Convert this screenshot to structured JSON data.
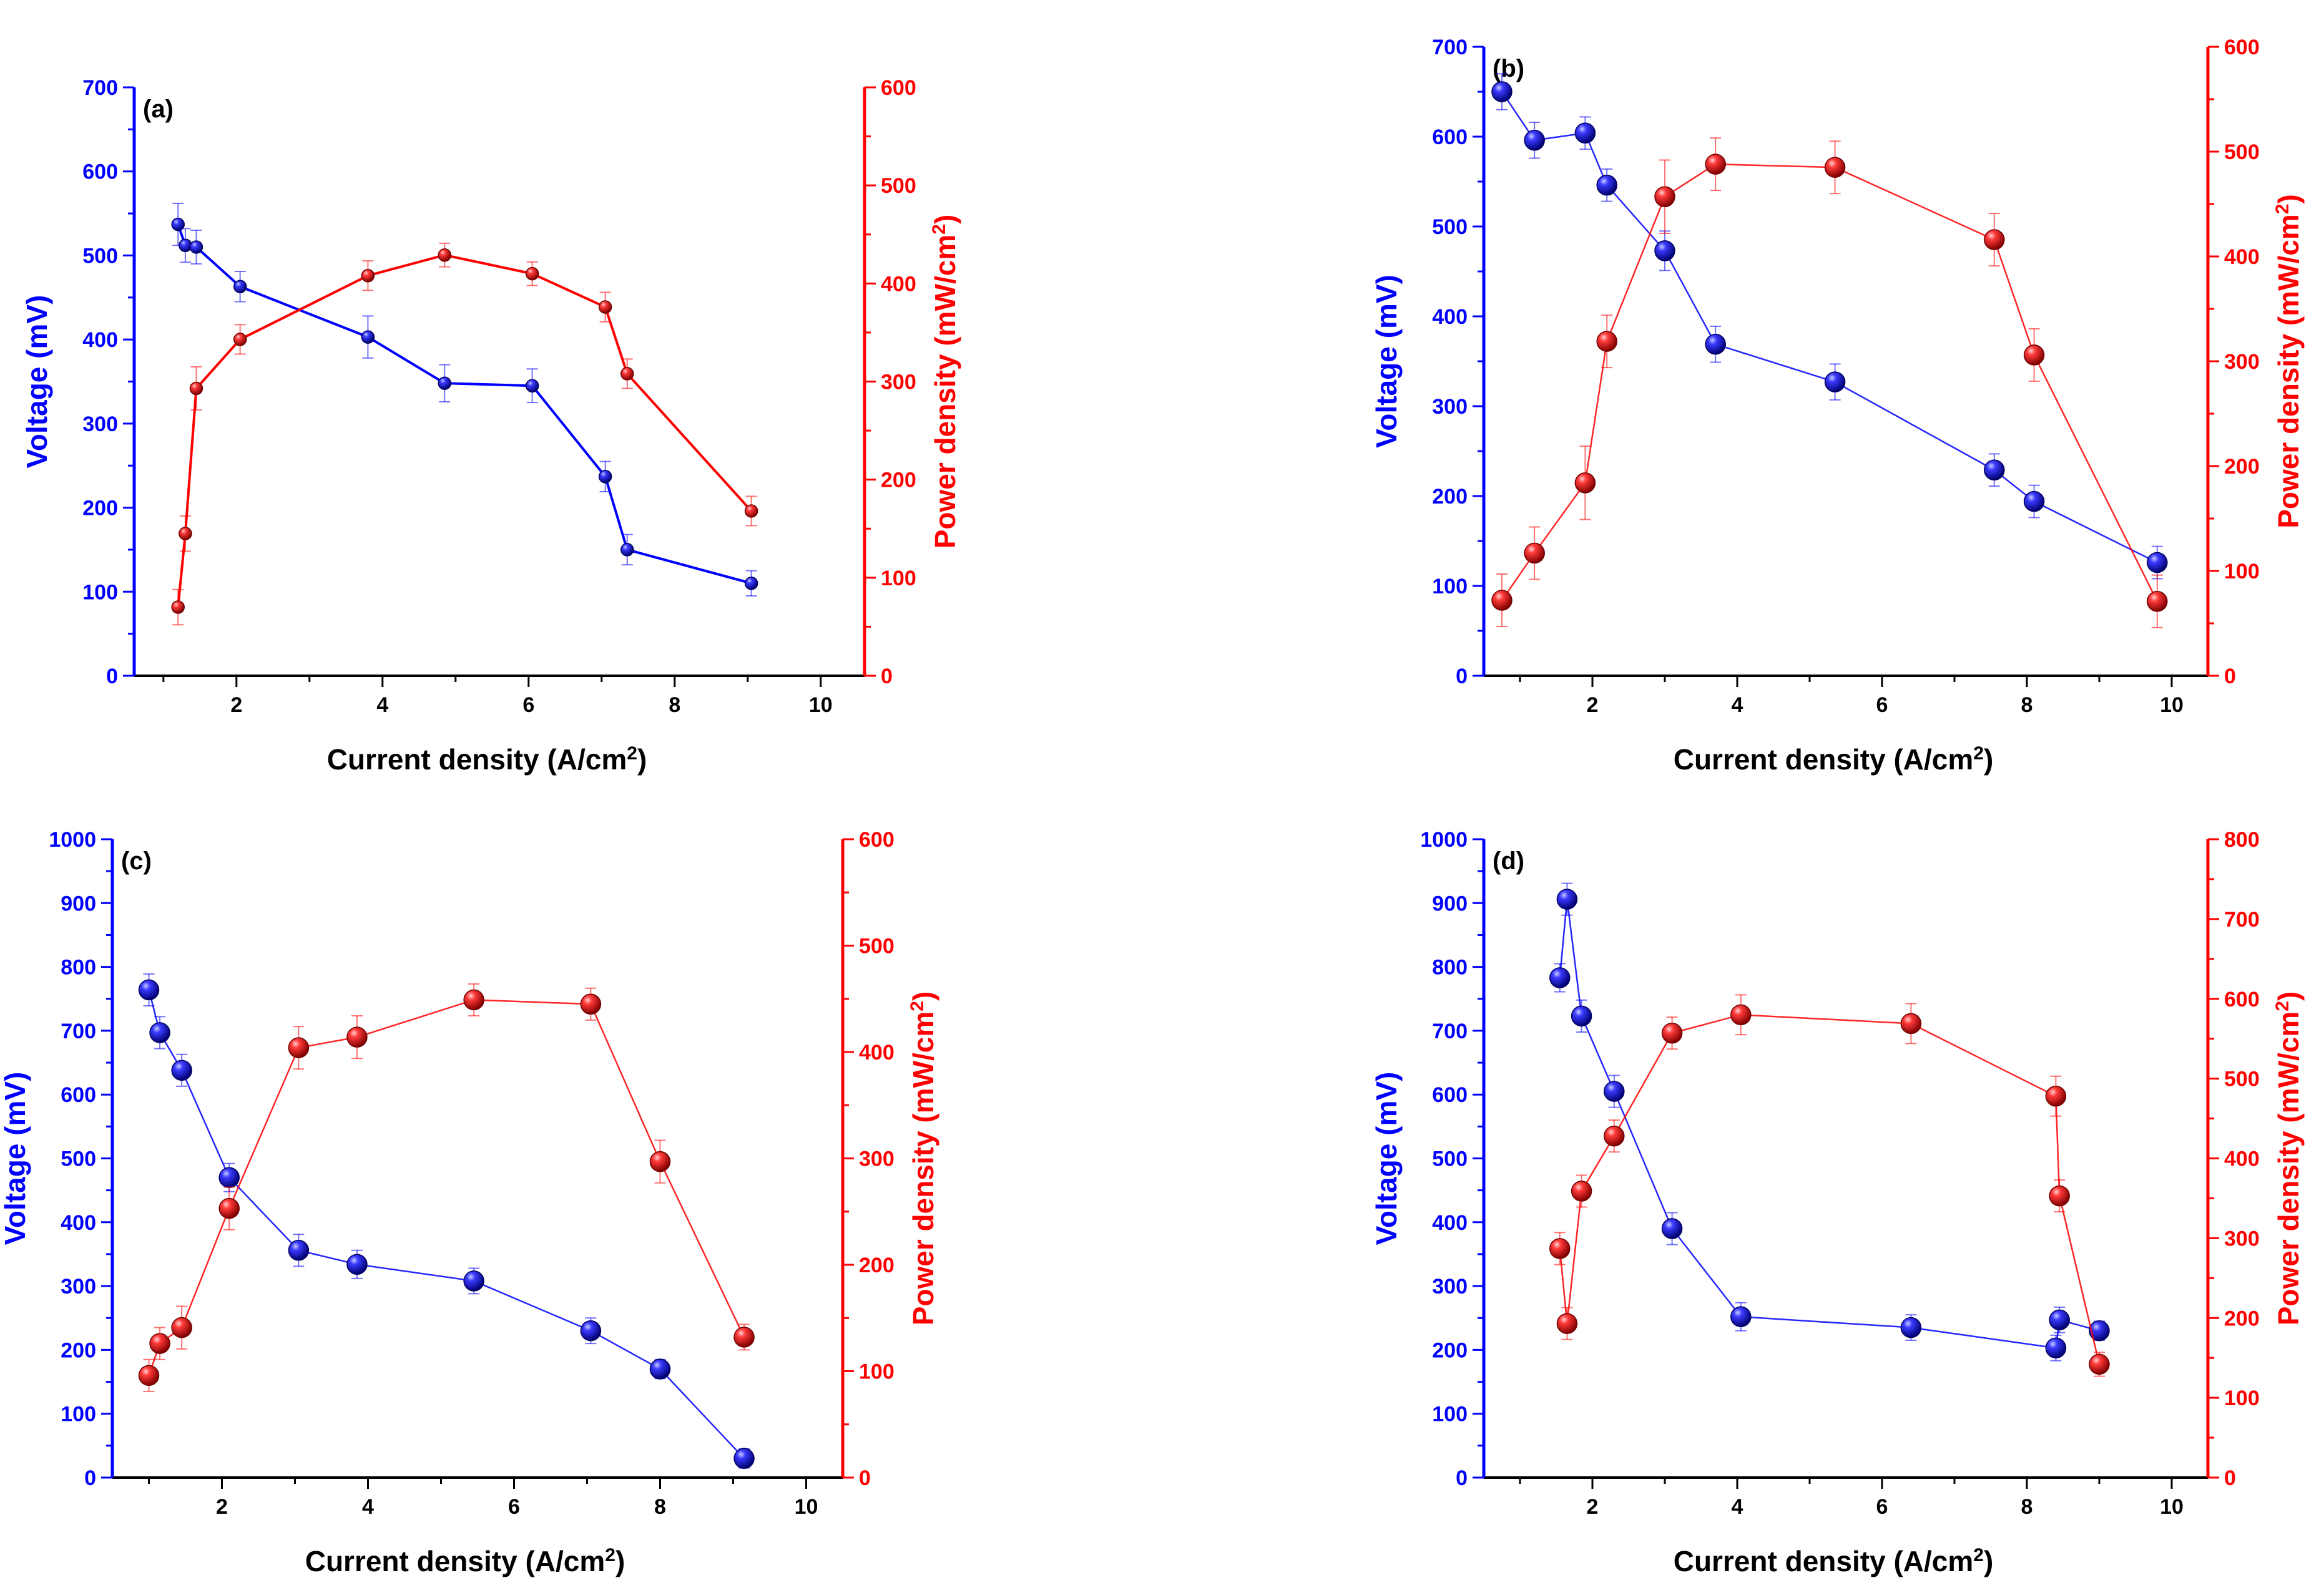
{
  "colors": {
    "voltage": "#0000ff",
    "power": "#ff0000",
    "axis": "#000000"
  },
  "chart_data": [
    {
      "type": "line",
      "panel_label": "(a)",
      "xlabel": "Current density (A/cm",
      "xlabel_sup": "2",
      "xlabel_end": ")",
      "ylabel_left": "Voltage (mV)",
      "ylabel_right": "Power density (mW/cm",
      "ylabel_right_sup": "2",
      "ylabel_right_end": ")",
      "xlim": [
        0.6,
        10.6
      ],
      "ylim_left": [
        0,
        700
      ],
      "ylim_right": [
        0,
        600
      ],
      "xticks": [
        2,
        4,
        6,
        8,
        10
      ],
      "xtick_labels": [
        "2",
        "4",
        "6",
        "8",
        "10"
      ],
      "yticks_left": [
        0,
        100,
        200,
        300,
        400,
        500,
        600,
        700
      ],
      "ytick_labels_left": [
        "0",
        "100",
        "200",
        "300",
        "400",
        "500",
        "600",
        "700"
      ],
      "yticks_right": [
        0,
        100,
        200,
        300,
        400,
        500,
        600
      ],
      "ytick_labels_right": [
        "0",
        "100",
        "200",
        "300",
        "400",
        "500",
        "600"
      ],
      "marker": "small",
      "series": [
        {
          "name": "Voltage",
          "axis": "left",
          "x": [
            1.2,
            1.3,
            1.45,
            2.05,
            3.8,
            4.85,
            6.05,
            7.05,
            7.35,
            9.05
          ],
          "y": [
            537,
            512,
            510,
            463,
            403,
            348,
            345,
            237,
            150,
            110
          ],
          "err": [
            25,
            20,
            20,
            18,
            25,
            22,
            20,
            18,
            18,
            15
          ]
        },
        {
          "name": "Power density",
          "axis": "right",
          "x": [
            1.2,
            1.3,
            1.45,
            2.05,
            3.8,
            4.85,
            6.05,
            7.05,
            7.35,
            9.05
          ],
          "y": [
            70,
            145,
            293,
            343,
            408,
            429,
            410,
            376,
            308,
            168
          ],
          "err": [
            18,
            18,
            22,
            15,
            15,
            12,
            12,
            15,
            15,
            15
          ]
        }
      ]
    },
    {
      "type": "line",
      "panel_label": "(b)",
      "xlabel": "Current density (A/cm",
      "xlabel_sup": "2",
      "xlabel_end": ")",
      "ylabel_left": "Voltage (mV)",
      "ylabel_right": "Power density (mW/cm",
      "ylabel_right_sup": "2",
      "ylabel_right_end": ")",
      "xlim": [
        0.5,
        10.5
      ],
      "ylim_left": [
        0,
        700
      ],
      "ylim_right": [
        0,
        600
      ],
      "xticks": [
        2,
        4,
        6,
        8,
        10
      ],
      "xtick_labels": [
        "2",
        "4",
        "6",
        "8",
        "10"
      ],
      "yticks_left": [
        0,
        100,
        200,
        300,
        400,
        500,
        600,
        700
      ],
      "ytick_labels_left": [
        "0",
        "100",
        "200",
        "300",
        "400",
        "500",
        "600",
        "700"
      ],
      "yticks_right": [
        0,
        100,
        200,
        300,
        400,
        500,
        600
      ],
      "ytick_labels_right": [
        "0",
        "100",
        "200",
        "300",
        "400",
        "500",
        "600"
      ],
      "marker": "large",
      "series": [
        {
          "name": "Voltage",
          "axis": "left",
          "x": [
            0.75,
            1.2,
            1.9,
            2.2,
            3.0,
            3.7,
            5.35,
            7.55,
            8.1,
            9.8
          ],
          "y": [
            650,
            596,
            604,
            546,
            473,
            369,
            327,
            229,
            194,
            126
          ],
          "err": [
            20,
            20,
            18,
            18,
            22,
            20,
            20,
            18,
            18,
            18
          ]
        },
        {
          "name": "Power density",
          "axis": "right",
          "x": [
            0.75,
            1.2,
            1.9,
            2.2,
            3.0,
            3.7,
            5.35,
            7.55,
            8.1,
            9.8
          ],
          "y": [
            72,
            117,
            184,
            319,
            457,
            488,
            485,
            416,
            306,
            71
          ],
          "err": [
            25,
            25,
            35,
            25,
            35,
            25,
            25,
            25,
            25,
            25
          ]
        }
      ]
    },
    {
      "type": "line",
      "panel_label": "(c)",
      "xlabel": "Current density (A/cm",
      "xlabel_sup": "2",
      "xlabel_end": ")",
      "ylabel_left": "Voltage (mV)",
      "ylabel_right": "Power density (mW/cm",
      "ylabel_right_sup": "2",
      "ylabel_right_end": ")",
      "xlim": [
        0.5,
        10.5
      ],
      "ylim_left": [
        0,
        1000
      ],
      "ylim_right": [
        0,
        600
      ],
      "xticks": [
        2,
        4,
        6,
        8,
        10
      ],
      "xtick_labels": [
        "2",
        "4",
        "6",
        "8",
        "10"
      ],
      "yticks_left": [
        0,
        100,
        200,
        300,
        400,
        500,
        600,
        700,
        800,
        900,
        1000
      ],
      "ytick_labels_left": [
        "0",
        "100",
        "200",
        "300",
        "400",
        "500",
        "600",
        "700",
        "800",
        "900",
        "1000"
      ],
      "yticks_right": [
        0,
        100,
        200,
        300,
        400,
        500,
        600
      ],
      "ytick_labels_right": [
        "0",
        "100",
        "200",
        "300",
        "400",
        "500",
        "600"
      ],
      "marker": "large",
      "series": [
        {
          "name": "Voltage",
          "axis": "left",
          "x": [
            1.0,
            1.15,
            1.45,
            2.1,
            3.05,
            3.85,
            5.45,
            7.05,
            8.0,
            9.15
          ],
          "y": [
            764,
            697,
            638,
            470,
            356,
            334,
            308,
            230,
            170,
            30
          ],
          "err": [
            25,
            25,
            25,
            22,
            25,
            22,
            20,
            20,
            15,
            15
          ]
        },
        {
          "name": "Power density",
          "axis": "right",
          "x": [
            1.0,
            1.15,
            1.45,
            2.1,
            3.05,
            3.85,
            5.45,
            7.05,
            8.0,
            9.15
          ],
          "y": [
            96,
            126,
            141,
            253,
            404,
            414,
            449,
            445,
            297,
            132
          ],
          "err": [
            15,
            15,
            20,
            20,
            20,
            20,
            15,
            15,
            20,
            12
          ]
        }
      ]
    },
    {
      "type": "line",
      "panel_label": "(d)",
      "xlabel": "Current density (A/cm",
      "xlabel_sup": "2",
      "xlabel_end": ")",
      "ylabel_left": "Voltage (mV)",
      "ylabel_right": "Power density (mW/cm",
      "ylabel_right_sup": "2",
      "ylabel_right_end": ")",
      "xlim": [
        0.5,
        10.5
      ],
      "ylim_left": [
        0,
        1000
      ],
      "ylim_right": [
        0,
        800
      ],
      "xticks": [
        2,
        4,
        6,
        8,
        10
      ],
      "xtick_labels": [
        "2",
        "4",
        "6",
        "8",
        "10"
      ],
      "yticks_left": [
        0,
        100,
        200,
        300,
        400,
        500,
        600,
        700,
        800,
        900,
        1000
      ],
      "ytick_labels_left": [
        "0",
        "100",
        "200",
        "300",
        "400",
        "500",
        "600",
        "700",
        "800",
        "900",
        "1000"
      ],
      "yticks_right": [
        0,
        100,
        200,
        300,
        400,
        500,
        600,
        700,
        800
      ],
      "ytick_labels_right": [
        "0",
        "100",
        "200",
        "300",
        "400",
        "500",
        "600",
        "700",
        "800"
      ],
      "marker": "large",
      "series": [
        {
          "name": "Voltage",
          "axis": "left",
          "x": [
            1.55,
            1.65,
            1.85,
            2.3,
            3.1,
            4.05,
            6.4,
            8.4,
            8.45,
            9.0
          ],
          "y": [
            783,
            906,
            723,
            605,
            390,
            252,
            235,
            203,
            247,
            230
          ],
          "err": [
            22,
            25,
            25,
            25,
            25,
            22,
            20,
            20,
            20,
            15
          ]
        },
        {
          "name": "Power density",
          "axis": "right",
          "x": [
            1.55,
            1.65,
            1.85,
            2.3,
            3.1,
            4.05,
            6.4,
            8.4,
            8.45,
            9.0
          ],
          "y": [
            287,
            193,
            359,
            428,
            557,
            580,
            569,
            478,
            353,
            142
          ],
          "err": [
            20,
            20,
            20,
            20,
            20,
            25,
            25,
            25,
            20,
            15
          ]
        }
      ]
    }
  ]
}
